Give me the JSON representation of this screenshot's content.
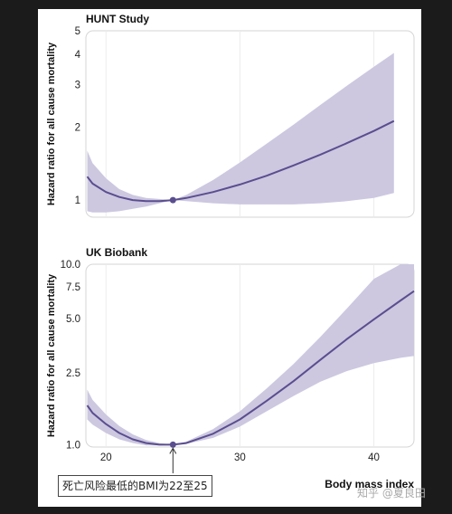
{
  "chart_data": [
    {
      "type": "line",
      "title": "HUNT Study",
      "ylabel": "Hazard ratio for all cause mortality",
      "xlabel": "",
      "y_scale": "log",
      "xlim": [
        18.5,
        43
      ],
      "ylim": [
        0.85,
        5
      ],
      "y_ticks": [
        1,
        2,
        3,
        4,
        5
      ],
      "y_tick_labels": [
        "1",
        "2",
        "3",
        "4",
        "5"
      ],
      "x_ticks": [
        20,
        30,
        40
      ],
      "x_tick_labels": [],
      "grid": "vertical",
      "reference_point": {
        "x": 25,
        "y": 1.0
      },
      "series": [
        {
          "x": [
            18.6,
            19,
            20,
            21,
            22,
            23,
            24,
            25,
            26,
            28,
            30,
            32,
            34,
            36,
            38,
            40,
            41.5
          ],
          "y": [
            1.25,
            1.17,
            1.08,
            1.03,
            1.0,
            0.99,
            0.99,
            1.0,
            1.02,
            1.08,
            1.16,
            1.26,
            1.39,
            1.54,
            1.72,
            1.93,
            2.12
          ],
          "lower": [
            0.9,
            0.89,
            0.89,
            0.9,
            0.92,
            0.94,
            0.97,
            1.0,
            0.99,
            0.97,
            0.96,
            0.96,
            0.96,
            0.97,
            0.99,
            1.02,
            1.07
          ],
          "upper": [
            1.6,
            1.42,
            1.23,
            1.11,
            1.05,
            1.02,
            1.01,
            1.0,
            1.05,
            1.21,
            1.43,
            1.71,
            2.05,
            2.47,
            2.97,
            3.55,
            4.05
          ]
        }
      ]
    },
    {
      "type": "line",
      "title": "UK Biobank",
      "ylabel": "Hazard ratio for all cause mortality",
      "xlabel": "Body mass index",
      "y_scale": "log",
      "xlim": [
        18.5,
        43
      ],
      "ylim": [
        0.97,
        10
      ],
      "y_ticks": [
        1.0,
        2.5,
        5.0,
        7.5,
        10.0
      ],
      "y_tick_labels": [
        "1.0",
        "2.5",
        "5.0",
        "7.5",
        "10.0"
      ],
      "x_ticks": [
        20,
        30,
        40
      ],
      "x_tick_labels": [
        "20",
        "30",
        "40"
      ],
      "grid": "vertical",
      "reference_point": {
        "x": 25,
        "y": 1.0
      },
      "series": [
        {
          "x": [
            18.6,
            19,
            20,
            21,
            22,
            23,
            24,
            25,
            26,
            28,
            30,
            32,
            34,
            36,
            38,
            40,
            42,
            43
          ],
          "y": [
            1.65,
            1.5,
            1.3,
            1.16,
            1.07,
            1.02,
            1.0,
            1.0,
            1.02,
            1.15,
            1.38,
            1.75,
            2.25,
            2.95,
            3.85,
            4.95,
            6.3,
            7.1
          ],
          "lower": [
            1.38,
            1.29,
            1.16,
            1.07,
            1.02,
            0.99,
            0.99,
            1.0,
            1.01,
            1.09,
            1.26,
            1.53,
            1.86,
            2.23,
            2.56,
            2.83,
            3.03,
            3.1
          ],
          "upper": [
            2.02,
            1.77,
            1.47,
            1.27,
            1.14,
            1.06,
            1.02,
            1.0,
            1.04,
            1.22,
            1.53,
            2.05,
            2.8,
            3.95,
            5.7,
            8.3,
            10.0,
            10.0
          ]
        }
      ]
    }
  ],
  "annotation": "死亡风险最低的BMI为22至25",
  "watermark": "知乎 @夏良田",
  "colors": {
    "line": "#5b4e8f",
    "band": "#cdc8e0",
    "frame": "#d6d6d6",
    "grid": "#ececec"
  }
}
